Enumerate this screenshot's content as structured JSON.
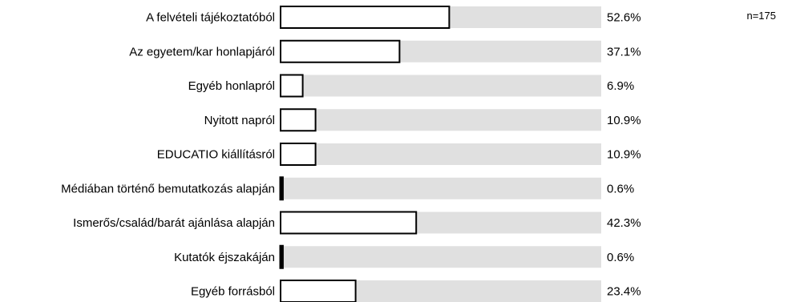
{
  "note": "n=175",
  "chart_data": {
    "type": "bar",
    "orientation": "horizontal",
    "categories": [
      "A felvételi tájékoztatóból",
      "Az egyetem/kar honlapjáról",
      "Egyéb honlapról",
      "Nyitott napról",
      "EDUCATIO kiállításról",
      "Médiában történő bemutatkozás alapján",
      "Ismerős/család/barát ajánlása alapján",
      "Kutatók éjszakáján",
      "Egyéb forrásból"
    ],
    "values": [
      52.6,
      37.1,
      6.9,
      10.9,
      10.9,
      0.6,
      42.3,
      0.6,
      23.4
    ],
    "value_labels": [
      "52.6%",
      "37.1%",
      "6.9%",
      "10.9%",
      "10.9%",
      "0.6%",
      "42.3%",
      "0.6%",
      "23.4%"
    ],
    "xlim": [
      0,
      100
    ],
    "title": "",
    "xlabel": "",
    "ylabel": "",
    "grid": false,
    "colors": {
      "track": "#e0e0e0",
      "bar_fill": "#ffffff",
      "bar_stroke": "#000000",
      "text": "#000000"
    }
  }
}
